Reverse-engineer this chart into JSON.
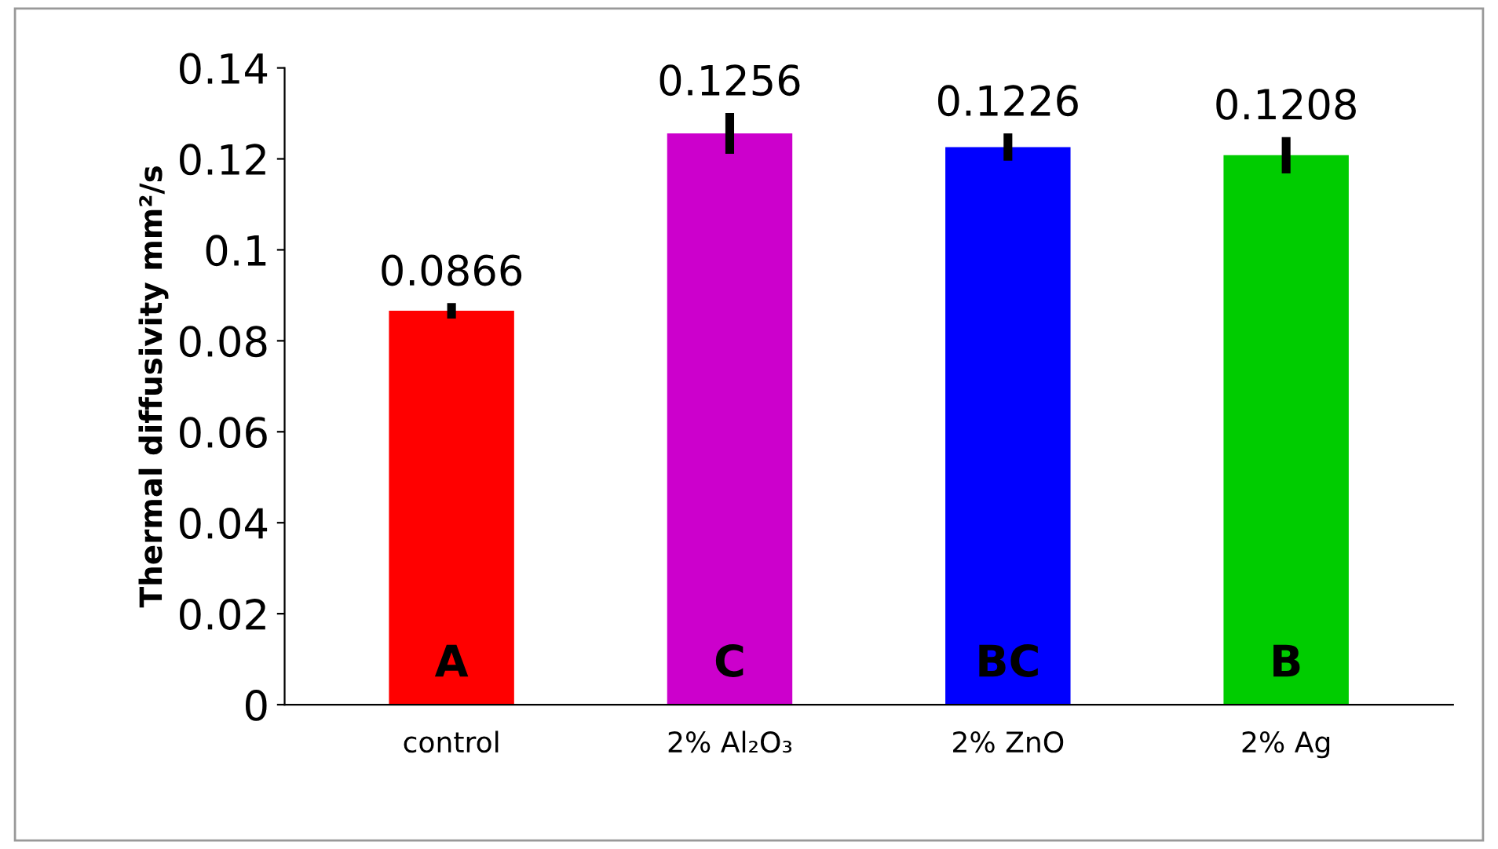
{
  "chart_data": {
    "type": "bar",
    "ylabel": "Thermal diffusivity mm²/s",
    "categories": [
      "control",
      "2% Al₂O₃",
      "2% ZnO",
      "2% Ag"
    ],
    "values": [
      0.0866,
      0.1256,
      0.1226,
      0.1208
    ],
    "colors": [
      "#ff0000",
      "#cc00cc",
      "#0000ff",
      "#00cc00"
    ],
    "errors": [
      0.0017,
      0.0045,
      0.003,
      0.004
    ],
    "data_labels": true,
    "annotations": [
      "A",
      "C",
      "BC",
      "B"
    ],
    "ylim": [
      0,
      0.14
    ],
    "yticks": [
      0,
      {
        "value": 0.02,
        "label": "0.02"
      },
      {
        "value": 0.04,
        "label": "0.04"
      },
      {
        "value": 0.06,
        "label": "0.06"
      },
      {
        "value": 0.08,
        "label": "0.08"
      },
      {
        "value": 0.1,
        "label": "0.1"
      },
      {
        "value": 0.12,
        "label": "0.12"
      },
      {
        "value": 0.14,
        "label": "0.14"
      }
    ],
    "grid": false,
    "legend": false
  }
}
